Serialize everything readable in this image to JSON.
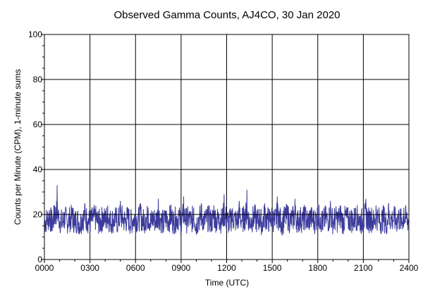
{
  "chart_data": {
    "type": "line",
    "title": "Observed Gamma Counts, AJ4CO, 30 Jan 2020",
    "xlabel": "Time (UTC)",
    "ylabel": "Counts per Minute (CPM), 1-minute sums",
    "xlim": [
      0,
      1440
    ],
    "ylim": [
      0,
      100
    ],
    "x_ticks": [
      {
        "value": 0,
        "label": "0000"
      },
      {
        "value": 180,
        "label": "0300"
      },
      {
        "value": 360,
        "label": "0600"
      },
      {
        "value": 540,
        "label": "0900"
      },
      {
        "value": 720,
        "label": "1200"
      },
      {
        "value": 900,
        "label": "1500"
      },
      {
        "value": 1080,
        "label": "1800"
      },
      {
        "value": 1260,
        "label": "2100"
      },
      {
        "value": 1440,
        "label": "2400"
      }
    ],
    "y_ticks": [
      {
        "value": 0,
        "label": "0"
      },
      {
        "value": 20,
        "label": "20"
      },
      {
        "value": 40,
        "label": "40"
      },
      {
        "value": 60,
        "label": "60"
      },
      {
        "value": 80,
        "label": "80"
      },
      {
        "value": 100,
        "label": "100"
      }
    ],
    "grid": true,
    "reference_line": 20,
    "series_color": "#3b3b9c",
    "series": [
      {
        "x_interval_minutes": 10,
        "values": [
          14,
          18,
          22,
          13,
          24,
          33,
          17,
          14,
          21,
          16,
          19,
          23,
          15,
          18,
          12,
          20,
          25,
          17,
          14,
          19,
          22,
          16,
          13,
          21,
          18,
          24,
          15,
          17,
          20,
          14,
          26,
          19,
          16,
          22,
          13,
          18,
          21,
          17,
          25,
          15,
          19,
          23,
          14,
          20,
          16,
          27,
          18,
          12,
          21,
          17,
          24,
          15,
          19,
          22,
          13,
          28,
          17,
          20,
          16,
          23,
          11,
          19,
          25,
          15,
          18,
          21,
          14,
          24,
          17,
          20,
          16,
          29,
          18,
          13,
          22,
          19,
          15,
          26,
          17,
          21,
          31,
          14,
          18,
          23,
          16,
          20,
          12,
          25,
          19,
          17,
          22,
          15,
          28,
          18,
          13,
          21,
          24,
          16,
          19,
          27,
          15,
          20,
          17,
          23,
          14,
          22,
          18,
          16,
          25,
          19,
          13,
          21,
          17,
          26,
          15,
          20,
          18,
          24,
          14,
          22,
          17,
          19,
          16,
          23,
          20,
          15,
          18,
          27,
          17,
          21,
          14,
          24,
          19,
          16,
          22,
          12,
          25,
          18,
          20,
          16,
          21,
          15,
          23,
          19,
          17,
          26,
          14,
          22,
          18,
          20,
          16,
          24,
          15,
          21,
          19,
          17,
          28,
          22,
          14,
          19,
          16,
          23,
          18,
          21,
          15,
          25,
          17,
          20,
          19,
          39,
          16,
          22,
          18,
          24,
          15,
          21,
          17,
          32,
          19,
          14,
          23,
          20,
          16,
          26,
          18,
          22,
          15,
          19,
          21,
          17,
          20,
          18
        ]
      }
    ]
  }
}
